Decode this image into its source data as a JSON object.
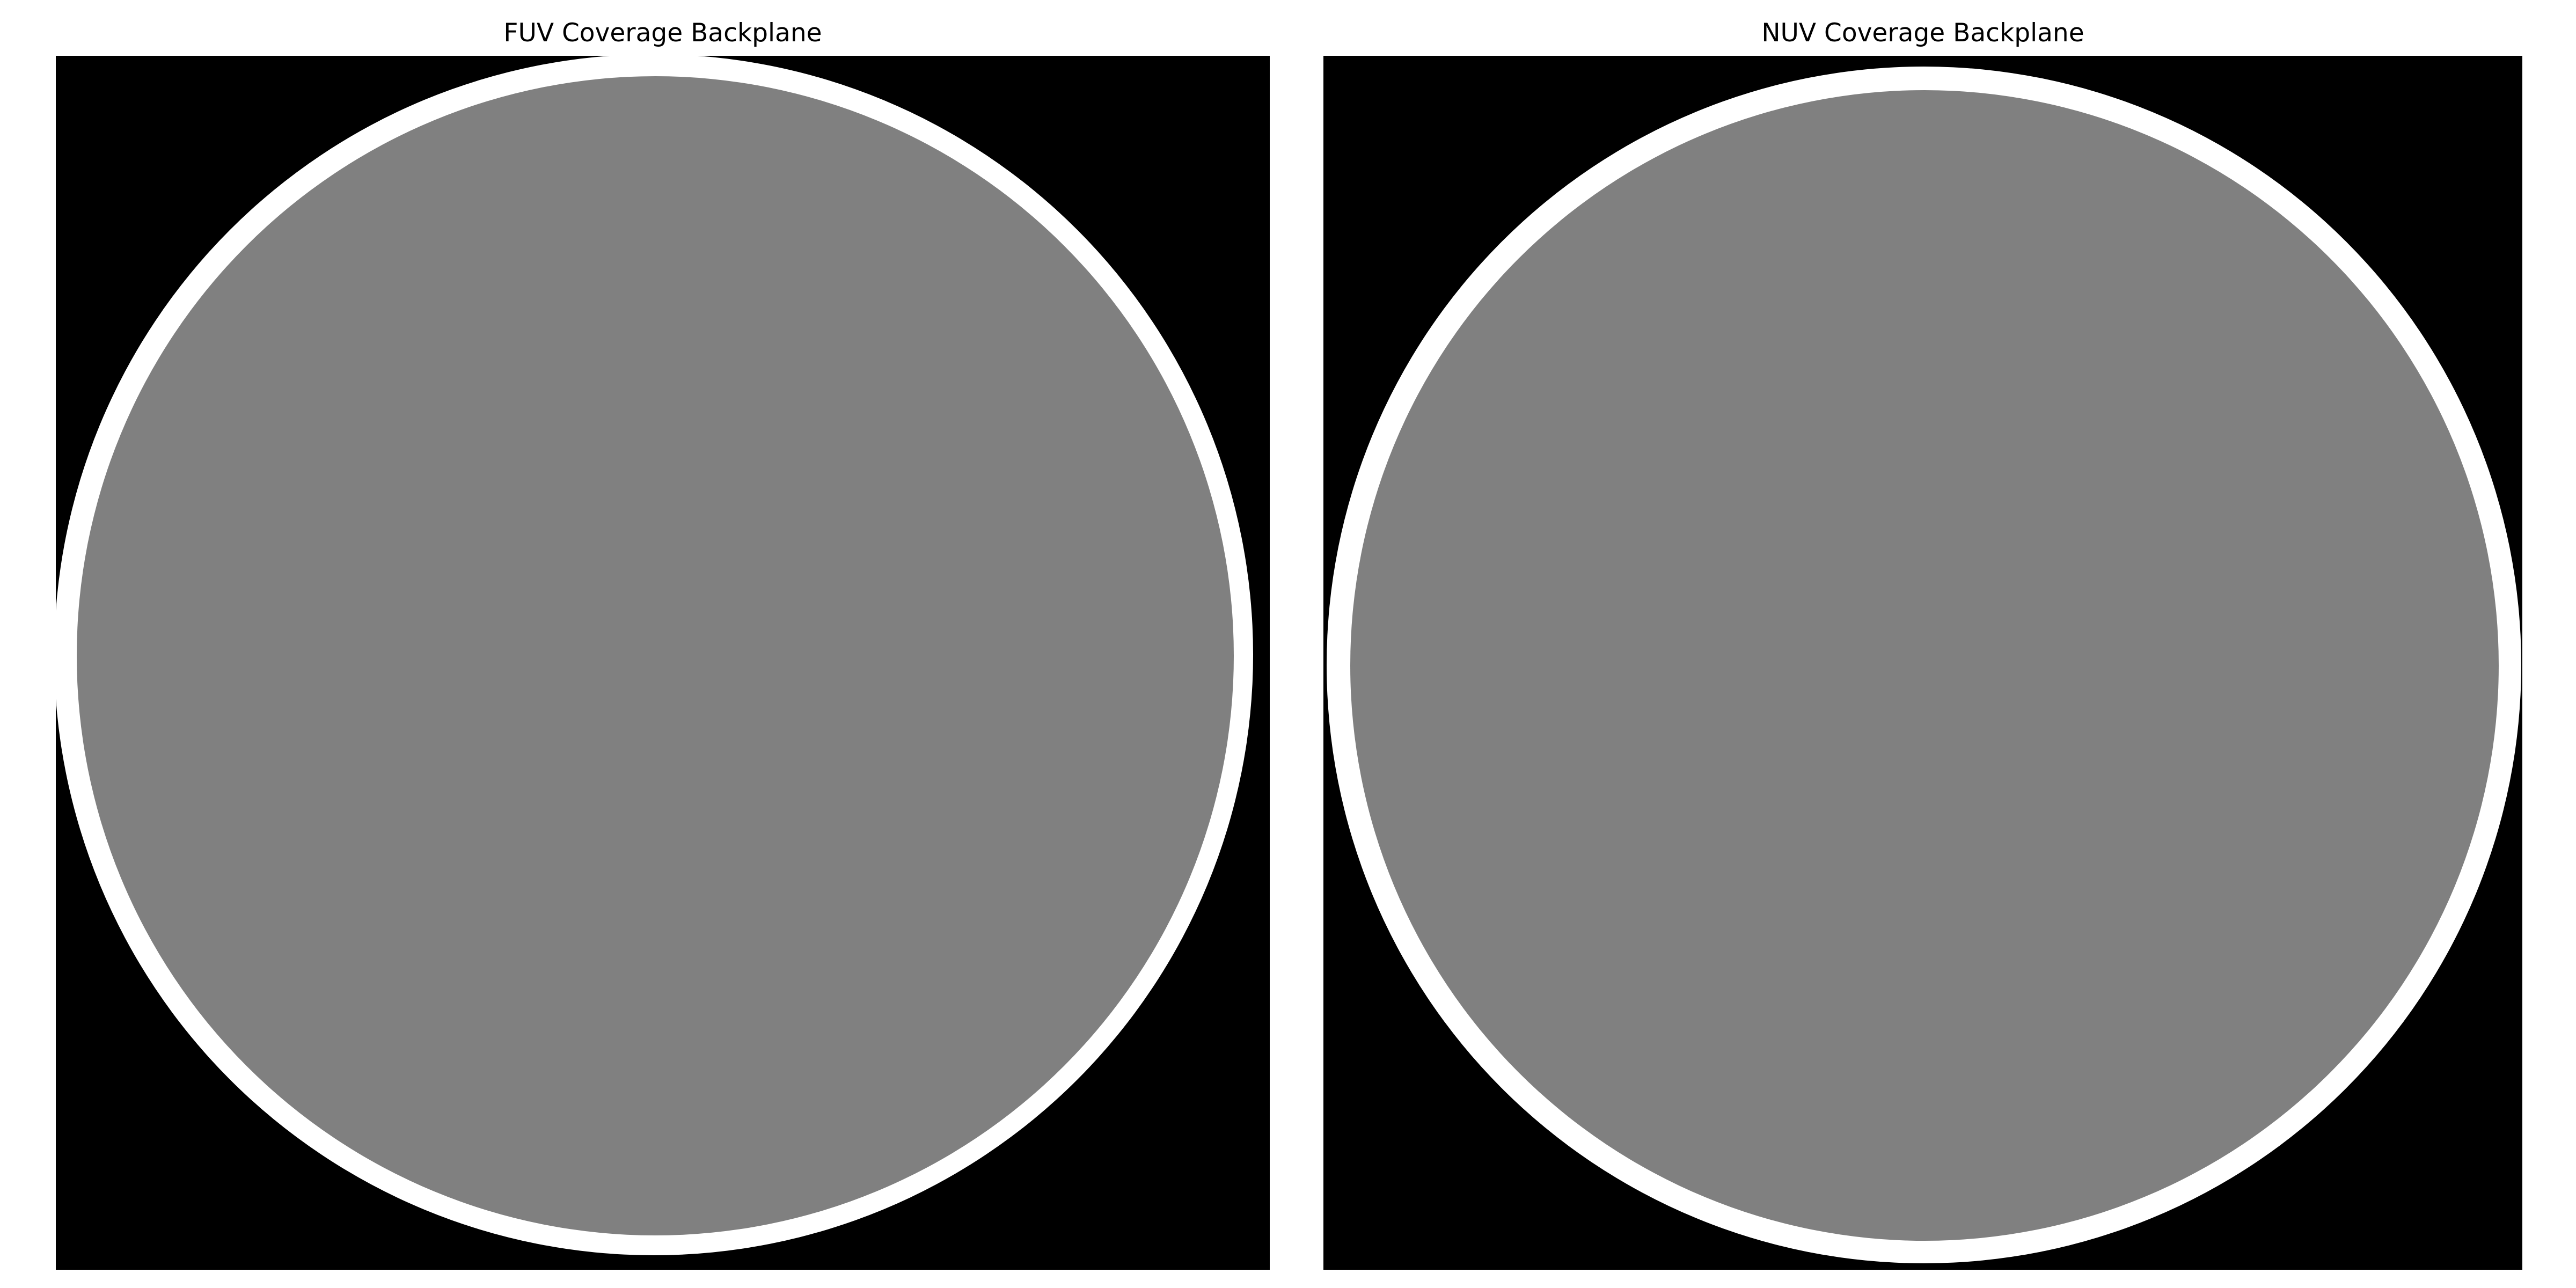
{
  "panels": [
    {
      "id": "fuv",
      "title": "FUV Coverage Backplane",
      "colors": {
        "background": "#000000",
        "ring": "#ffffff",
        "coverage": "#808080"
      }
    },
    {
      "id": "nuv",
      "title": "NUV Coverage Backplane",
      "colors": {
        "background": "#000000",
        "ring": "#ffffff",
        "coverage": "#808080"
      }
    }
  ]
}
